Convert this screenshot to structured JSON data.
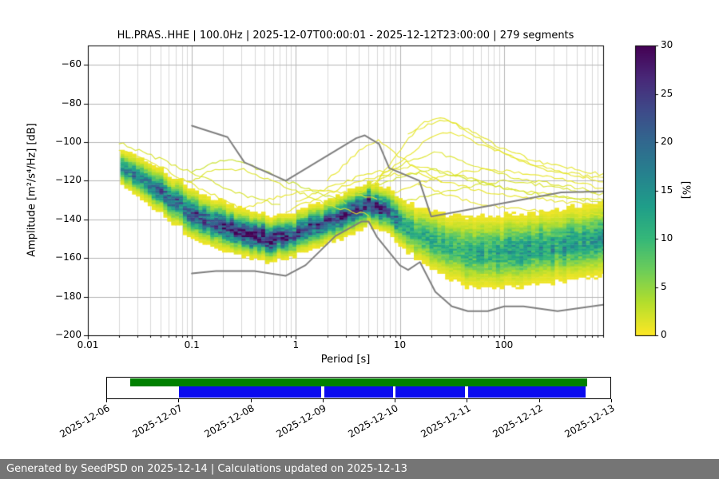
{
  "page": {
    "background": "#ffffff"
  },
  "plot": {
    "title": "HL.PRAS..HHE | 100.0Hz | 2025-12-07T00:00:01 - 2025-12-12T23:00:00 | 279 segments",
    "xlabel": "Period [s]",
    "ylabel": "Amplitude [m²/s⁴/Hz] [dB]",
    "station": {
      "network": "HL",
      "station": "PRAS",
      "channel": "HHE",
      "sampling_rate": "100.0Hz",
      "start": "2025-12-07T00:00:01",
      "end": "2025-12-12T23:00:00",
      "segments": 279
    }
  },
  "colorbar": {
    "label": "[%]",
    "min": 0,
    "max": 30,
    "colormap": "viridis_r",
    "ticks": [
      {
        "v": 0,
        "label": "0"
      },
      {
        "v": 5,
        "label": "5"
      },
      {
        "v": 10,
        "label": "10"
      },
      {
        "v": 15,
        "label": "15"
      },
      {
        "v": 20,
        "label": "20"
      },
      {
        "v": 25,
        "label": "25"
      },
      {
        "v": 30,
        "label": "30"
      }
    ]
  },
  "chart_data": {
    "type": "heatmap",
    "subtype": "ppsd-probabilistic-power-spectral-density",
    "title": "HL.PRAS..HHE | 100.0Hz | 2025-12-07T00:00:01 - 2025-12-12T23:00:00 | 279 segments",
    "xlabel": "Period [s]",
    "ylabel": "Amplitude [m2/s4/Hz] [dB]",
    "xscale": "log",
    "xlim": [
      0.01,
      900
    ],
    "ylim": [
      -200,
      -50
    ],
    "grid": true,
    "legend_position": "colorbar-right",
    "x_ticks": [
      {
        "v": 0.01,
        "label": "0.01"
      },
      {
        "v": 0.1,
        "label": "0.1"
      },
      {
        "v": 1,
        "label": "1"
      },
      {
        "v": 10,
        "label": "10"
      },
      {
        "v": 100,
        "label": "100"
      }
    ],
    "y_ticks": [
      {
        "v": -60,
        "label": "−60"
      },
      {
        "v": -80,
        "label": "−80"
      },
      {
        "v": -100,
        "label": "−100"
      },
      {
        "v": -120,
        "label": "−120"
      },
      {
        "v": -140,
        "label": "−140"
      },
      {
        "v": -160,
        "label": "−160"
      },
      {
        "v": -180,
        "label": "−180"
      },
      {
        "v": -200,
        "label": "−200"
      }
    ],
    "data_period_range": [
      0.0205,
      900
    ],
    "ppsd_mode": [
      [
        0.02,
        -113,
        3.6,
        16
      ],
      [
        0.035,
        -120,
        4.0,
        18
      ],
      [
        0.06,
        -129,
        4.4,
        20
      ],
      [
        0.1,
        -137,
        4.8,
        20
      ],
      [
        0.2,
        -144.5,
        4.6,
        24
      ],
      [
        0.35,
        -148.5,
        4.4,
        27
      ],
      [
        0.6,
        -150.5,
        4.2,
        26
      ],
      [
        1.0,
        -148,
        4.2,
        22
      ],
      [
        1.8,
        -143,
        4.2,
        22
      ],
      [
        3.2,
        -136.5,
        4.2,
        26
      ],
      [
        5.0,
        -132.5,
        4.0,
        28
      ],
      [
        7.0,
        -134.5,
        4.2,
        22
      ],
      [
        10,
        -141,
        4.8,
        16
      ],
      [
        15,
        -148.5,
        5.5,
        12
      ],
      [
        25,
        -153.5,
        6.5,
        11
      ],
      [
        45,
        -157,
        7.5,
        11
      ],
      [
        90,
        -157.5,
        7.5,
        12
      ],
      [
        250,
        -154.5,
        7.5,
        13
      ],
      [
        900,
        -150.5,
        7.5,
        13
      ]
    ],
    "outlier_curves": [
      {
        "pct": 1.2,
        "points": [
          [
            6,
            -121
          ],
          [
            10,
            -104
          ],
          [
            16,
            -91
          ],
          [
            25,
            -86.5
          ],
          [
            40,
            -92
          ],
          [
            80,
            -101
          ],
          [
            200,
            -110
          ],
          [
            900,
            -117
          ]
        ]
      },
      {
        "pct": 1.0,
        "points": [
          [
            4,
            -127
          ],
          [
            9,
            -112
          ],
          [
            18,
            -99
          ],
          [
            30,
            -94
          ],
          [
            60,
            -101
          ],
          [
            150,
            -110
          ],
          [
            900,
            -121
          ]
        ]
      },
      {
        "pct": 1.2,
        "points": [
          [
            12,
            -96
          ],
          [
            20,
            -90
          ],
          [
            30,
            -89
          ],
          [
            50,
            -96
          ],
          [
            100,
            -106
          ],
          [
            250,
            -114
          ],
          [
            900,
            -119
          ]
        ]
      },
      {
        "pct": 1.5,
        "points": [
          [
            2.5,
            -130
          ],
          [
            6,
            -120
          ],
          [
            12,
            -110
          ],
          [
            22,
            -105
          ],
          [
            45,
            -111
          ],
          [
            120,
            -118
          ],
          [
            900,
            -126
          ]
        ]
      },
      {
        "pct": 1.0,
        "points": [
          [
            8,
            -127
          ],
          [
            20,
            -119
          ],
          [
            60,
            -114
          ],
          [
            150,
            -116
          ],
          [
            400,
            -120
          ],
          [
            900,
            -124
          ]
        ]
      },
      {
        "pct": 1.8,
        "points": [
          [
            10,
            -131
          ],
          [
            30,
            -125
          ],
          [
            100,
            -120
          ],
          [
            300,
            -123
          ],
          [
            900,
            -127
          ]
        ]
      },
      {
        "pct": 1.2,
        "points": [
          [
            1,
            -131
          ],
          [
            2,
            -124
          ],
          [
            4,
            -118
          ],
          [
            8,
            -114
          ],
          [
            15,
            -112
          ],
          [
            35,
            -117
          ],
          [
            90,
            -123
          ],
          [
            250,
            -127
          ],
          [
            900,
            -130
          ]
        ]
      },
      {
        "pct": 1.0,
        "points": [
          [
            0.8,
            -136
          ],
          [
            1.8,
            -128
          ],
          [
            3.5,
            -121
          ],
          [
            7,
            -117
          ],
          [
            14,
            -116
          ],
          [
            30,
            -121
          ],
          [
            80,
            -127
          ],
          [
            900,
            -133
          ]
        ]
      },
      {
        "pct": 2.5,
        "points": [
          [
            0.1,
            -116
          ],
          [
            0.16,
            -111
          ],
          [
            0.25,
            -109
          ],
          [
            0.4,
            -113
          ],
          [
            0.8,
            -120
          ],
          [
            1.6,
            -126
          ],
          [
            3,
            -131
          ]
        ]
      },
      {
        "pct": 1.5,
        "points": [
          [
            0.09,
            -121
          ],
          [
            0.15,
            -115
          ],
          [
            0.3,
            -114
          ],
          [
            0.6,
            -120
          ],
          [
            1.2,
            -127
          ],
          [
            2.5,
            -134
          ],
          [
            5,
            -138
          ]
        ]
      },
      {
        "pct": 1.2,
        "points": [
          [
            0.02,
            -104
          ],
          [
            0.035,
            -109
          ],
          [
            0.06,
            -115
          ],
          [
            0.1,
            -122
          ],
          [
            0.2,
            -130
          ],
          [
            0.4,
            -138
          ]
        ]
      },
      {
        "pct": 1.8,
        "points": [
          [
            0.02,
            -100
          ],
          [
            0.05,
            -109
          ],
          [
            0.12,
            -118
          ],
          [
            0.3,
            -127
          ],
          [
            0.7,
            -133
          ]
        ]
      },
      {
        "pct": 1.0,
        "points": [
          [
            0.3,
            -135
          ],
          [
            0.7,
            -128
          ],
          [
            1.5,
            -124
          ],
          [
            3,
            -126
          ],
          [
            6,
            -130
          ]
        ]
      },
      {
        "pct": 1.0,
        "points": [
          [
            2,
            -120
          ],
          [
            4,
            -105
          ],
          [
            6,
            -99
          ],
          [
            9,
            -106
          ],
          [
            14,
            -113
          ],
          [
            25,
            -120
          ]
        ]
      },
      {
        "pct": 1.0,
        "points": [
          [
            15,
            -122
          ],
          [
            40,
            -130
          ],
          [
            100,
            -134
          ],
          [
            300,
            -136
          ],
          [
            900,
            -138
          ]
        ]
      },
      {
        "pct": 2.2,
        "points": [
          [
            5,
            -124
          ],
          [
            10,
            -118
          ],
          [
            20,
            -114
          ],
          [
            50,
            -120
          ],
          [
            150,
            -126
          ],
          [
            900,
            -131
          ]
        ]
      }
    ],
    "noise_models": {
      "nhnm": [
        [
          0.1,
          -91.5
        ],
        [
          0.22,
          -97.4
        ],
        [
          0.32,
          -110.5
        ],
        [
          0.8,
          -120.0
        ],
        [
          3.8,
          -98.0
        ],
        [
          4.6,
          -96.5
        ],
        [
          6.3,
          -101.0
        ],
        [
          7.9,
          -113.5
        ],
        [
          15.4,
          -120.0
        ],
        [
          20.0,
          -138.5
        ],
        [
          354.8,
          -126.0
        ],
        [
          900,
          -125.5
        ]
      ],
      "nlnm": [
        [
          0.1,
          -168.0
        ],
        [
          0.17,
          -166.7
        ],
        [
          0.4,
          -166.7
        ],
        [
          0.8,
          -169.2
        ],
        [
          1.24,
          -163.7
        ],
        [
          2.4,
          -148.6
        ],
        [
          4.3,
          -141.1
        ],
        [
          5.0,
          -141.1
        ],
        [
          6.0,
          -149.0
        ],
        [
          10.0,
          -163.8
        ],
        [
          12.0,
          -166.2
        ],
        [
          15.6,
          -162.1
        ],
        [
          21.9,
          -177.5
        ],
        [
          31.6,
          -185.0
        ],
        [
          45.0,
          -187.5
        ],
        [
          70.0,
          -187.5
        ],
        [
          101.0,
          -185.0
        ],
        [
          154.0,
          -185.0
        ],
        [
          328.0,
          -187.5
        ],
        [
          900,
          -184.2
        ]
      ]
    },
    "colorbar": {
      "label": "[%]",
      "min": 0,
      "max": 30,
      "colormap": "viridis_r"
    }
  },
  "timeline": {
    "tick_labels": [
      "2025-12-06",
      "2025-12-07",
      "2025-12-08",
      "2025-12-09",
      "2025-12-10",
      "2025-12-11",
      "2025-12-12",
      "2025-12-13"
    ],
    "availability": {
      "color": "#008000",
      "segments": [
        [
          0.046,
          0.954
        ]
      ]
    },
    "coverage": {
      "color": "#0a0aee",
      "segments": [
        [
          0.1429,
          0.4262
        ],
        [
          0.431,
          0.569
        ],
        [
          0.5738,
          0.7119
        ],
        [
          0.7167,
          0.951
        ]
      ]
    }
  },
  "footer": {
    "text": "Generated by SeedPSD on 2025-12-14 | Calculations updated on 2025-12-13",
    "bg_color": "#757575",
    "text_color": "#ffffff"
  }
}
